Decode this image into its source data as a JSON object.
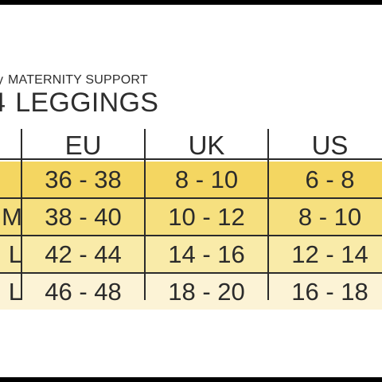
{
  "heading": {
    "subtitle_prefix": "y",
    "subtitle": "MATERNITY SUPPORT",
    "title_prefix": "4",
    "title": "LEGGINGS"
  },
  "table": {
    "columns": [
      "",
      "EU",
      "UK",
      "US"
    ],
    "rows": [
      {
        "size": "",
        "eu": "36 - 38",
        "uk": "8 - 10",
        "us": "6 - 8"
      },
      {
        "size": "M",
        "eu": "38 - 40",
        "uk": "10 - 12",
        "us": "8 - 10"
      },
      {
        "size": "L",
        "eu": "42 - 44",
        "uk": "14 - 16",
        "us": "12 - 14"
      },
      {
        "size": "L",
        "eu": "46 - 48",
        "uk": "18 - 20",
        "us": "16 - 18"
      }
    ]
  },
  "colors": {
    "row1": "#f4d661",
    "row2": "#f6e07f",
    "row3": "#f9eba9",
    "row4": "#fcf3d6",
    "text": "#2b2b2b"
  }
}
